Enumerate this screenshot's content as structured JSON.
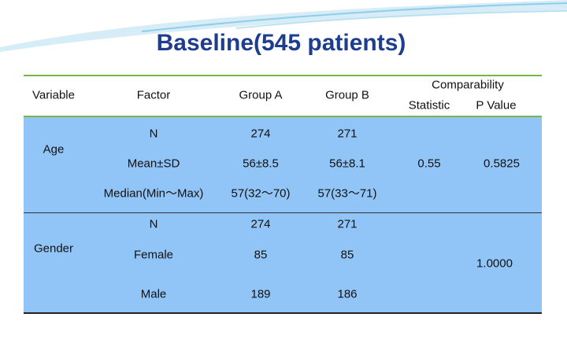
{
  "title": "Baseline(545 patients)",
  "table": {
    "header": {
      "variable": "Variable",
      "factor": "Factor",
      "group_a": "Group A",
      "group_b": "Group B",
      "comparability": "Comparability",
      "statistic": "Statistic",
      "p_value": "P Value"
    },
    "groups": [
      {
        "variable": "Age",
        "statistic": 0.55,
        "p_value": 0.5825,
        "rows": [
          [
            "N",
            274,
            271
          ],
          [
            "Mean±SD",
            "56±8.5",
            "56±8.1"
          ],
          [
            "Median(Min～Max)",
            "57(32～70)",
            "57(33～71)"
          ]
        ]
      },
      {
        "variable": "Gender",
        "p_value": "1.0000",
        "rows": [
          [
            "N",
            274,
            271
          ],
          [
            "Female",
            85,
            85
          ],
          [
            "Male",
            189,
            186
          ]
        ]
      }
    ]
  }
}
